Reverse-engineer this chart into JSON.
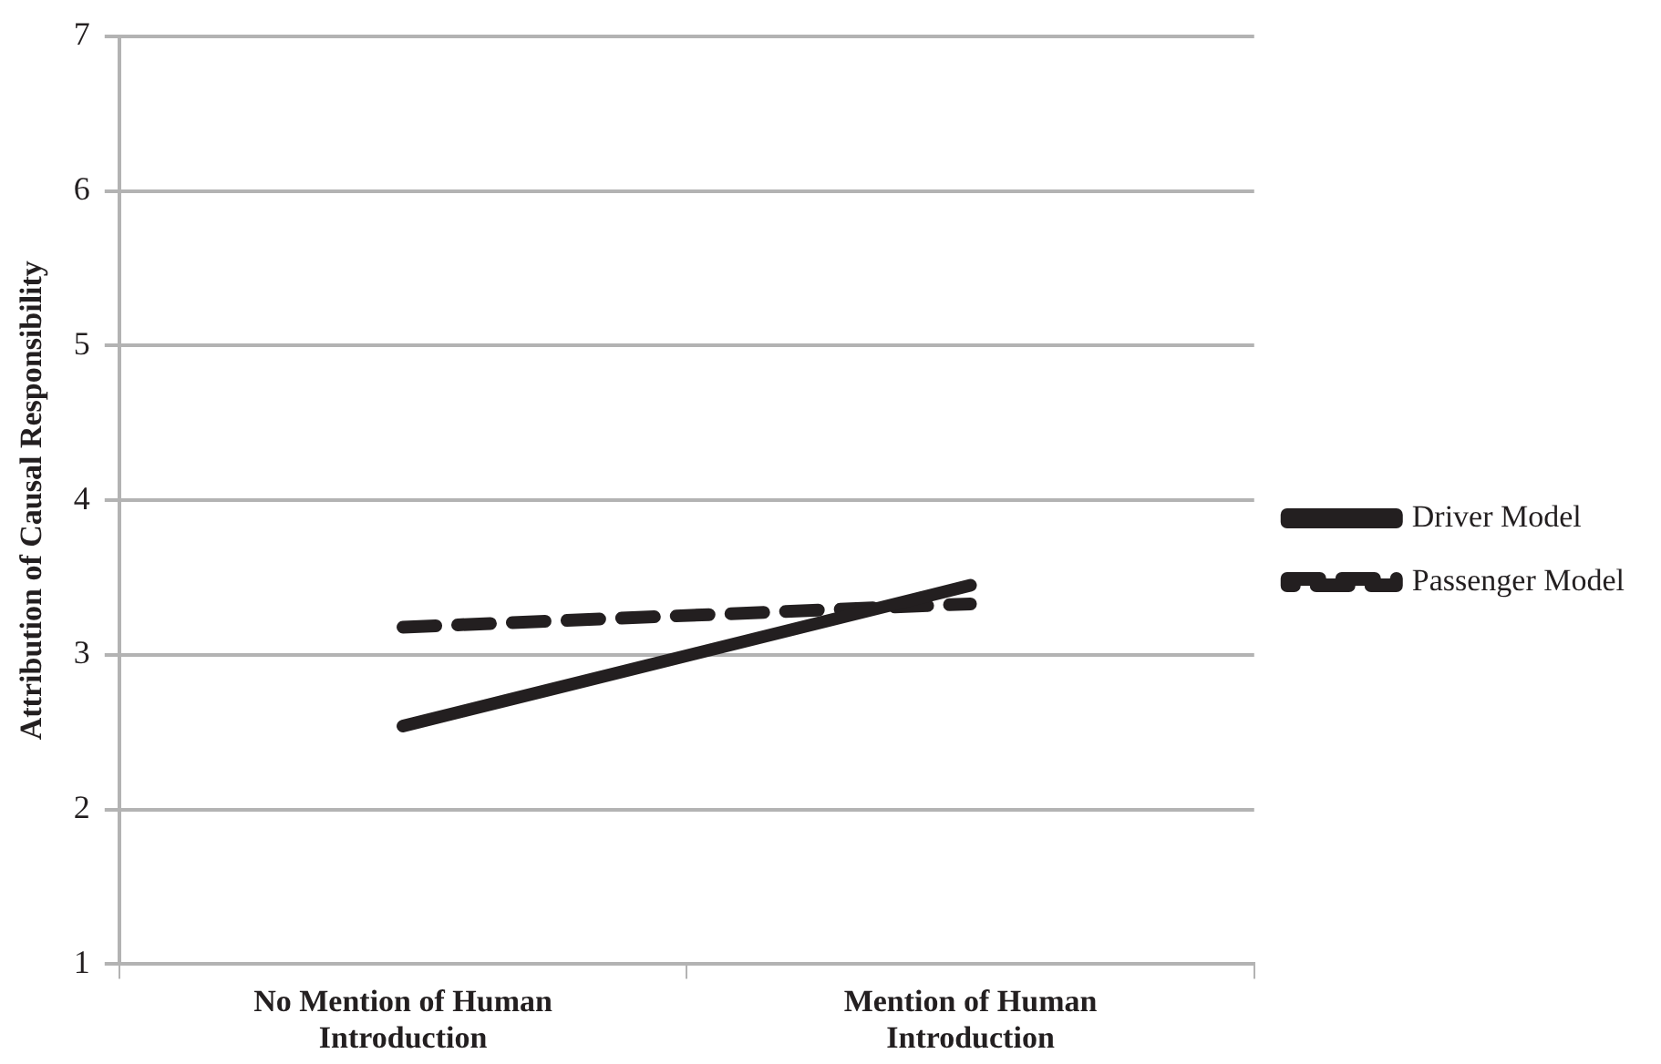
{
  "chart_data": {
    "type": "line",
    "ylabel": "Attribution of Causal Responsibility",
    "categories": [
      "No Mention of Human Introduction",
      "Mention of Human Introduction"
    ],
    "series": [
      {
        "name": "Driver Model",
        "color": "#231f20",
        "values": [
          2.54,
          3.45
        ],
        "line_style": "solid"
      },
      {
        "name": "Passenger Model",
        "color": "#231f20",
        "values": [
          3.18,
          3.33
        ],
        "line_style": "dashed"
      }
    ],
    "ylim": [
      1,
      7
    ],
    "yticks": [
      1,
      2,
      3,
      4,
      5,
      6,
      7
    ],
    "grid": "y",
    "legend": "right",
    "marker": "none"
  }
}
